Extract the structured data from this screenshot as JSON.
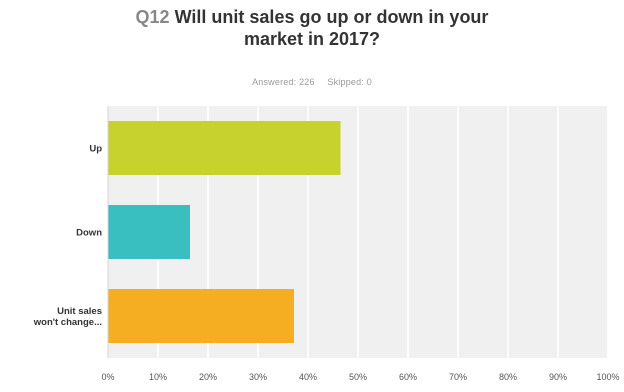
{
  "header": {
    "question_number": "Q12",
    "title_line1": "Will unit sales go up or down in your",
    "title_line2": "market in 2017?",
    "answered": "Answered: 226",
    "skipped": "Skipped: 0"
  },
  "chart_data": {
    "type": "bar",
    "orientation": "horizontal",
    "categories": [
      "Up",
      "Down",
      "Unit sales won't change..."
    ],
    "category_label_lines": [
      [
        "Up"
      ],
      [
        "Down"
      ],
      [
        "Unit sales",
        "won't change..."
      ]
    ],
    "values": [
      46.5,
      16.4,
      37.2
    ],
    "colors": [
      "#c7d22e",
      "#39bfbf",
      "#f5ad22"
    ],
    "xlim": [
      0,
      100
    ],
    "xticks": [
      0,
      10,
      20,
      30,
      40,
      50,
      60,
      70,
      80,
      90,
      100
    ],
    "xtick_labels": [
      "0%",
      "10%",
      "20%",
      "30%",
      "40%",
      "50%",
      "60%",
      "70%",
      "80%",
      "90%",
      "100%"
    ],
    "grid": true,
    "plot_background": "#f0f0f0"
  }
}
